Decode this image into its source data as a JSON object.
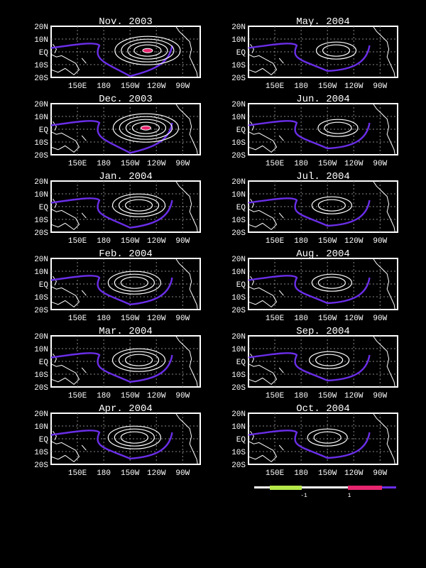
{
  "maps": [
    {
      "title": "Nov. 2003",
      "rings": 4,
      "hot": true,
      "cx": -130,
      "lobe": 40
    },
    {
      "title": "May. 2004",
      "rings": 2,
      "hot": false,
      "cx": -140,
      "lobe": 0
    },
    {
      "title": "Dec. 2003",
      "rings": 4,
      "hot": true,
      "cx": -132,
      "lobe": 35
    },
    {
      "title": "Jun. 2004",
      "rings": 2,
      "hot": false,
      "cx": -138,
      "lobe": 0
    },
    {
      "title": "Jan. 2004",
      "rings": 3,
      "hot": false,
      "cx": -140,
      "lobe": 15
    },
    {
      "title": "Jul. 2004",
      "rings": 2,
      "hot": false,
      "cx": -145,
      "lobe": 0
    },
    {
      "title": "Feb. 2004",
      "rings": 3,
      "hot": false,
      "cx": -145,
      "lobe": 10
    },
    {
      "title": "Aug. 2004",
      "rings": 2,
      "hot": false,
      "cx": -145,
      "lobe": 0
    },
    {
      "title": "Mar. 2004",
      "rings": 3,
      "hot": false,
      "cx": -140,
      "lobe": 10
    },
    {
      "title": "Sep. 2004",
      "rings": 2,
      "hot": false,
      "cx": -148,
      "lobe": 0
    },
    {
      "title": "Apr. 2004",
      "rings": 3,
      "hot": false,
      "cx": -145,
      "lobe": 5
    },
    {
      "title": "Oct. 2004",
      "rings": 2,
      "hot": false,
      "cx": -150,
      "lobe": 0
    }
  ],
  "lat_ticks": [
    "20N",
    "10N",
    "EQ",
    "10S",
    "20S"
  ],
  "lon_ticks": [
    "150E",
    "180",
    "150W",
    "120W",
    "90W"
  ],
  "colorbar": {
    "labels": [
      "-1",
      "1"
    ],
    "low_color": "#b5e84a",
    "high_color": "#e8266f",
    "zero_color": "#6a2ee8"
  }
}
